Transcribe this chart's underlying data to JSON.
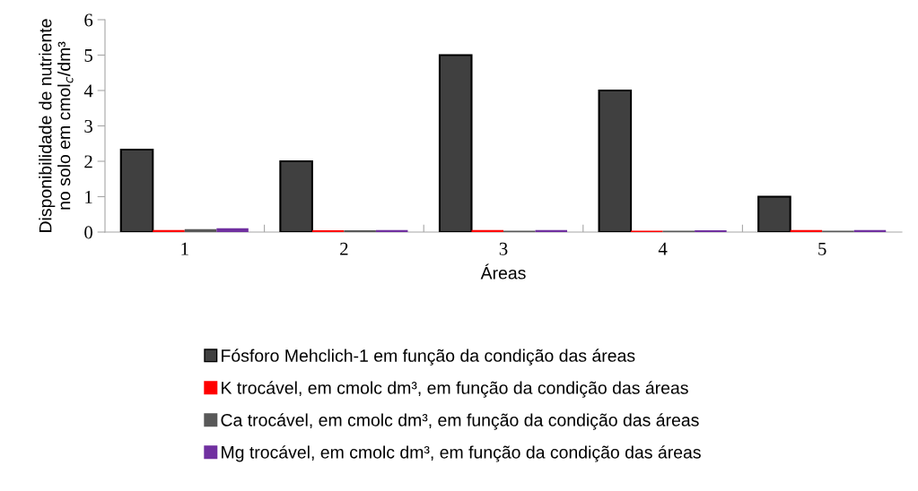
{
  "chart_data": {
    "type": "bar",
    "xlabel": "Áreas",
    "ylabel": "Disponibilidade de nutriente\nno solo em cmol$_{c}$/dm³",
    "categories": [
      "1",
      "2",
      "3",
      "4",
      "5"
    ],
    "series": [
      {
        "name": "Fósforo Mehclich-1 em função da condição das áreas",
        "color": "#404040",
        "values": [
          2.33,
          2,
          5,
          4,
          1
        ]
      },
      {
        "name": "K trocável, em cmolc dm³, em função da condição das áreas",
        "color": "#ff0000",
        "values": [
          0.06,
          0.05,
          0.06,
          0.04,
          0.06
        ]
      },
      {
        "name": "Ca trocável, em cmolc dm³, em função da condição das áreas",
        "color": "#595959",
        "values": [
          0.08,
          0.05,
          0.04,
          0.04,
          0.04
        ]
      },
      {
        "name": "Mg trocável, em cmolc dm³, em função da condição das áreas",
        "color": "#7030a0",
        "values": [
          0.11,
          0.06,
          0.06,
          0.05,
          0.06
        ]
      }
    ],
    "ylim": [
      0,
      6
    ],
    "yticks": [
      0,
      1,
      2,
      3,
      4,
      5,
      6
    ],
    "grid": false,
    "legend": "bottom"
  }
}
